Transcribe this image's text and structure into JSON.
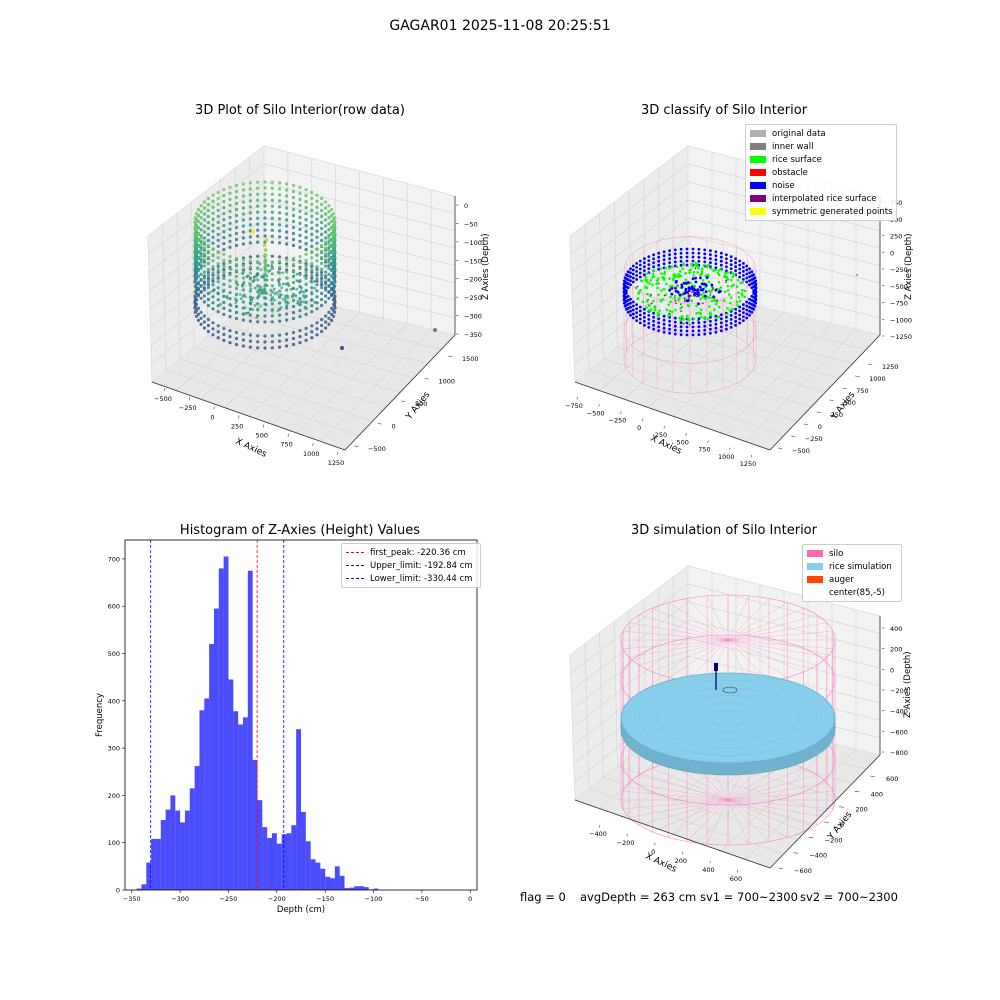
{
  "suptitle": "GAGAR01 2025-11-08 20:25:51",
  "panels": {
    "raw": {
      "title": "3D Plot of Silo Interior(row data)",
      "xlabel": "X Axies",
      "ylabel": "Y Axies",
      "zlabel": "Z Axies (Depth)",
      "xticks": [
        "−500",
        "−250",
        "0",
        "250",
        "500",
        "750",
        "1000",
        "1250"
      ],
      "yticks": [
        "−500",
        "0",
        "500",
        "1000",
        "1500"
      ],
      "zticks": [
        "0",
        "−50",
        "−100",
        "−150",
        "−200",
        "−250",
        "−300",
        "−350"
      ]
    },
    "classify": {
      "title": "3D classify of Silo Interior",
      "xlabel": "X Axies",
      "ylabel": "Y Axies",
      "zlabel": "Z Axies (Depth)",
      "xticks": [
        "−750",
        "−500",
        "−250",
        "0",
        "250",
        "500",
        "750",
        "1000",
        "1250"
      ],
      "yticks": [
        "−500",
        "−250",
        "0",
        "250",
        "500",
        "750",
        "1000",
        "1250"
      ],
      "zticks": [
        "750",
        "500",
        "250",
        "0",
        "−250",
        "−500",
        "−750",
        "−1000",
        "−1250"
      ],
      "legend": [
        {
          "label": "original data",
          "color": "#b0b0b0"
        },
        {
          "label": "inner wall",
          "color": "#808080"
        },
        {
          "label": "rice surface",
          "color": "#00ff00"
        },
        {
          "label": "obstacle",
          "color": "#ff0000"
        },
        {
          "label": "noise",
          "color": "#0000ff"
        },
        {
          "label": "interpolated rice surface",
          "color": "#800080"
        },
        {
          "label": "symmetric generated points",
          "color": "#ffff00"
        }
      ]
    },
    "simulation": {
      "title": "3D simulation of Silo Interior",
      "xlabel": "X Axies",
      "ylabel": "Y Axies",
      "zlabel": "Z Axies (Depth)",
      "xticks": [
        "−400",
        "−200",
        "0",
        "200",
        "400",
        "600"
      ],
      "yticks": [
        "−600",
        "−400",
        "−200",
        "0",
        "200",
        "400",
        "600"
      ],
      "zticks": [
        "400",
        "200",
        "0",
        "−200",
        "−400",
        "−600",
        "−800"
      ],
      "legend": [
        {
          "label": "silo",
          "color": "#ff69b4"
        },
        {
          "label": "rice simulation",
          "color": "#87ceeb"
        },
        {
          "label": "auger",
          "color": "#ff4500"
        },
        {
          "label": "center(85,-5)",
          "color": ""
        }
      ]
    }
  },
  "chart_data": [
    {
      "type": "bar",
      "title": "Histogram of Z-Axies (Height) Values",
      "xlabel": "Depth (cm)",
      "ylabel": "Frequency",
      "xlim": [
        -357,
        7
      ],
      "ylim": [
        0,
        740
      ],
      "xticks": [
        -350,
        -300,
        -250,
        -200,
        -150,
        -100,
        -50,
        0
      ],
      "yticks": [
        0,
        100,
        200,
        300,
        400,
        500,
        600,
        700
      ],
      "bin_edges_start": -345,
      "bin_width": 5,
      "values": [
        3,
        12,
        58,
        108,
        108,
        148,
        170,
        200,
        168,
        143,
        168,
        215,
        262,
        380,
        405,
        520,
        595,
        680,
        705,
        445,
        378,
        350,
        365,
        675,
        275,
        190,
        133,
        110,
        120,
        98,
        118,
        120,
        137,
        340,
        165,
        103,
        65,
        58,
        45,
        28,
        25,
        50,
        30,
        4,
        5,
        8,
        8,
        6,
        1,
        3
      ],
      "color": "#0000ff",
      "vlines": [
        {
          "label": "first_peak: -220.36 cm",
          "x": -220.36,
          "color": "#ff0000"
        },
        {
          "label": "Upper_limit: -192.84 cm",
          "x": -192.84,
          "color": "#0000ff"
        },
        {
          "label": "Lower_limit: -330.44 cm",
          "x": -330.44,
          "color": "#0000ff"
        }
      ]
    }
  ],
  "footer": {
    "flag": "flag = 0",
    "avg": "avgDepth = 263 cm",
    "sv1": "sv1 = 700~2300",
    "sv2": "sv2 = 700~2300"
  }
}
